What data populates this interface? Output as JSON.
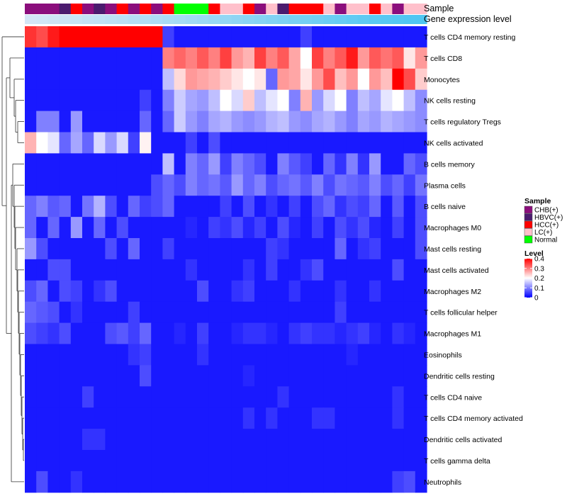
{
  "chart_data": {
    "type": "heatmap",
    "title": "",
    "row_labels": [
      "T cells CD4 memory resting",
      "T cells CD8",
      "Monocytes",
      "NK cells resting",
      "T cells regulatory  Tregs",
      "NK cells activated",
      "B cells memory",
      "Plasma cells",
      "B cells naive",
      "Macrophages M0",
      "Mast cells resting",
      "Mast cells activated",
      "Macrophages M2",
      "T cells follicular helper",
      "Macrophages M1",
      "Eosinophils",
      "Dendritic cells resting",
      "T cells CD4 naive",
      "T cells CD4 memory activated",
      "Dendritic cells activated",
      "T cells gamma delta",
      "Neutrophils"
    ],
    "annotation_labels": [
      "Sample",
      "Gene expression level"
    ],
    "samples": [
      "CHB(+)",
      "CHB(+)",
      "CHB(+)",
      "HBVC(+)",
      "HCC(+)",
      "CHB(+)",
      "HBVC(+)",
      "CHB(+)",
      "HCC(+)",
      "CHB(+)",
      "HCC(+)",
      "CHB(+)",
      "HCC(+)",
      "Normal",
      "Normal",
      "Normal",
      "HCC(+)",
      "LC(+)",
      "LC(+)",
      "HCC(+)",
      "CHB(+)",
      "LC(+)",
      "HBVC(+)",
      "HCC(+)",
      "HCC(+)",
      "HCC(+)",
      "LC(+)",
      "CHB(+)",
      "LC(+)",
      "LC(+)",
      "HCC(+)",
      "LC(+)",
      "CHB(+)",
      "LC(+)",
      "LC(+)"
    ],
    "expression": [
      0.1,
      0.12,
      0.14,
      0.16,
      0.18,
      0.21,
      0.23,
      0.26,
      0.28,
      0.31,
      0.33,
      0.36,
      0.39,
      0.42,
      0.45,
      0.48,
      0.51,
      0.54,
      0.57,
      0.6,
      0.63,
      0.66,
      0.69,
      0.72,
      0.75,
      0.78,
      0.81,
      0.84,
      0.87,
      0.9,
      0.93,
      0.95,
      0.97,
      0.99,
      1.0
    ],
    "values": [
      [
        0.36,
        0.34,
        0.38,
        0.42,
        0.42,
        0.42,
        0.42,
        0.42,
        0.42,
        0.42,
        0.42,
        0.42,
        0.05,
        0.02,
        0.02,
        0.02,
        0.02,
        0.02,
        0.02,
        0.02,
        0.02,
        0.02,
        0.02,
        0.02,
        0.05,
        0.02,
        0.02,
        0.02,
        0.02,
        0.02,
        0.02,
        0.02,
        0.02,
        0.02,
        0.02
      ],
      [
        0.02,
        0.02,
        0.02,
        0.02,
        0.02,
        0.02,
        0.02,
        0.02,
        0.02,
        0.02,
        0.02,
        0.02,
        0.3,
        0.32,
        0.3,
        0.33,
        0.3,
        0.35,
        0.28,
        0.26,
        0.35,
        0.3,
        0.33,
        0.27,
        0.2,
        0.35,
        0.3,
        0.33,
        0.38,
        0.28,
        0.33,
        0.31,
        0.33,
        0.22,
        0.28
      ],
      [
        0.02,
        0.02,
        0.02,
        0.02,
        0.02,
        0.02,
        0.02,
        0.02,
        0.02,
        0.02,
        0.02,
        0.02,
        0.15,
        0.23,
        0.28,
        0.27,
        0.26,
        0.24,
        0.22,
        0.2,
        0.22,
        0.08,
        0.28,
        0.27,
        0.22,
        0.28,
        0.34,
        0.25,
        0.28,
        0.2,
        0.28,
        0.25,
        0.4,
        0.34,
        0.24
      ],
      [
        0.02,
        0.02,
        0.02,
        0.02,
        0.02,
        0.02,
        0.02,
        0.02,
        0.02,
        0.02,
        0.05,
        0.02,
        0.1,
        0.16,
        0.13,
        0.12,
        0.15,
        0.2,
        0.17,
        0.24,
        0.15,
        0.18,
        0.2,
        0.1,
        0.26,
        0.12,
        0.17,
        0.2,
        0.1,
        0.15,
        0.13,
        0.18,
        0.2,
        0.15,
        0.11
      ],
      [
        0.02,
        0.1,
        0.1,
        0.02,
        0.12,
        0.02,
        0.02,
        0.02,
        0.02,
        0.02,
        0.08,
        0.02,
        0.08,
        0.16,
        0.12,
        0.1,
        0.13,
        0.14,
        0.12,
        0.11,
        0.12,
        0.14,
        0.15,
        0.12,
        0.11,
        0.13,
        0.14,
        0.12,
        0.1,
        0.13,
        0.12,
        0.14,
        0.13,
        0.12,
        0.11
      ],
      [
        0.26,
        0.2,
        0.18,
        0.08,
        0.13,
        0.08,
        0.17,
        0.12,
        0.17,
        0.05,
        0.21,
        0.02,
        0.02,
        0.02,
        0.05,
        0.02,
        0.06,
        0.02,
        0.02,
        0.02,
        0.02,
        0.02,
        0.02,
        0.02,
        0.02,
        0.02,
        0.02,
        0.02,
        0.02,
        0.02,
        0.02,
        0.02,
        0.02,
        0.02,
        0.02
      ],
      [
        0.02,
        0.02,
        0.02,
        0.02,
        0.02,
        0.02,
        0.02,
        0.02,
        0.02,
        0.02,
        0.02,
        0.02,
        0.15,
        0.02,
        0.1,
        0.08,
        0.12,
        0.05,
        0.1,
        0.08,
        0.06,
        0.02,
        0.1,
        0.07,
        0.05,
        0.02,
        0.08,
        0.04,
        0.1,
        0.04,
        0.12,
        0.02,
        0.02,
        0.08,
        0.06
      ],
      [
        0.02,
        0.02,
        0.02,
        0.02,
        0.02,
        0.02,
        0.02,
        0.02,
        0.02,
        0.02,
        0.02,
        0.06,
        0.08,
        0.06,
        0.1,
        0.08,
        0.09,
        0.07,
        0.12,
        0.08,
        0.1,
        0.06,
        0.08,
        0.09,
        0.07,
        0.1,
        0.06,
        0.09,
        0.08,
        0.07,
        0.1,
        0.06,
        0.08,
        0.05,
        0.09
      ],
      [
        0.08,
        0.1,
        0.07,
        0.08,
        0.02,
        0.09,
        0.14,
        0.06,
        0.02,
        0.08,
        0.05,
        0.06,
        0.08,
        0.02,
        0.02,
        0.02,
        0.02,
        0.05,
        0.02,
        0.06,
        0.02,
        0.04,
        0.02,
        0.05,
        0.02,
        0.06,
        0.08,
        0.04,
        0.06,
        0.05,
        0.08,
        0.02,
        0.07,
        0.02,
        0.06
      ],
      [
        0.08,
        0.02,
        0.08,
        0.02,
        0.12,
        0.02,
        0.08,
        0.02,
        0.06,
        0.02,
        0.02,
        0.02,
        0.02,
        0.02,
        0.03,
        0.02,
        0.05,
        0.04,
        0.06,
        0.03,
        0.05,
        0.02,
        0.06,
        0.03,
        0.02,
        0.05,
        0.02,
        0.06,
        0.04,
        0.06,
        0.03,
        0.02,
        0.05,
        0.02,
        0.06
      ],
      [
        0.12,
        0.06,
        0.02,
        0.02,
        0.02,
        0.02,
        0.02,
        0.06,
        0.02,
        0.08,
        0.02,
        0.02,
        0.05,
        0.02,
        0.02,
        0.02,
        0.02,
        0.02,
        0.02,
        0.02,
        0.02,
        0.05,
        0.04,
        0.02,
        0.02,
        0.02,
        0.02,
        0.08,
        0.02,
        0.04,
        0.05,
        0.02,
        0.02,
        0.02,
        0.06
      ],
      [
        0.02,
        0.02,
        0.06,
        0.06,
        0.02,
        0.02,
        0.02,
        0.02,
        0.02,
        0.02,
        0.02,
        0.02,
        0.02,
        0.02,
        0.04,
        0.02,
        0.02,
        0.02,
        0.02,
        0.04,
        0.02,
        0.05,
        0.02,
        0.02,
        0.04,
        0.06,
        0.02,
        0.02,
        0.02,
        0.02,
        0.02,
        0.02,
        0.06,
        0.02,
        0.02
      ],
      [
        0.06,
        0.08,
        0.02,
        0.06,
        0.05,
        0.02,
        0.04,
        0.06,
        0.02,
        0.02,
        0.02,
        0.02,
        0.02,
        0.02,
        0.02,
        0.06,
        0.02,
        0.02,
        0.04,
        0.05,
        0.02,
        0.02,
        0.02,
        0.04,
        0.02,
        0.02,
        0.02,
        0.04,
        0.02,
        0.02,
        0.04,
        0.02,
        0.02,
        0.02,
        0.02
      ],
      [
        0.08,
        0.07,
        0.06,
        0.02,
        0.04,
        0.02,
        0.02,
        0.02,
        0.02,
        0.05,
        0.02,
        0.02,
        0.02,
        0.02,
        0.02,
        0.02,
        0.02,
        0.02,
        0.02,
        0.02,
        0.02,
        0.02,
        0.02,
        0.02,
        0.02,
        0.02,
        0.02,
        0.05,
        0.02,
        0.02,
        0.02,
        0.02,
        0.02,
        0.02,
        0.02
      ],
      [
        0.06,
        0.05,
        0.04,
        0.06,
        0.02,
        0.02,
        0.02,
        0.06,
        0.07,
        0.05,
        0.08,
        0.02,
        0.02,
        0.03,
        0.02,
        0.05,
        0.02,
        0.02,
        0.03,
        0.04,
        0.04,
        0.03,
        0.02,
        0.04,
        0.05,
        0.04,
        0.04,
        0.03,
        0.04,
        0.05,
        0.03,
        0.02,
        0.04,
        0.03,
        0.02
      ],
      [
        0.02,
        0.02,
        0.02,
        0.02,
        0.02,
        0.02,
        0.02,
        0.02,
        0.02,
        0.04,
        0.05,
        0.02,
        0.02,
        0.02,
        0.02,
        0.04,
        0.02,
        0.02,
        0.02,
        0.02,
        0.02,
        0.02,
        0.02,
        0.02,
        0.02,
        0.02,
        0.02,
        0.02,
        0.03,
        0.02,
        0.02,
        0.02,
        0.02,
        0.02,
        0.02
      ],
      [
        0.02,
        0.02,
        0.02,
        0.02,
        0.02,
        0.02,
        0.02,
        0.02,
        0.02,
        0.02,
        0.06,
        0.02,
        0.02,
        0.02,
        0.02,
        0.02,
        0.02,
        0.02,
        0.02,
        0.03,
        0.02,
        0.02,
        0.02,
        0.02,
        0.02,
        0.02,
        0.02,
        0.02,
        0.02,
        0.02,
        0.02,
        0.02,
        0.02,
        0.02,
        0.02
      ],
      [
        0.02,
        0.02,
        0.02,
        0.02,
        0.02,
        0.05,
        0.02,
        0.02,
        0.02,
        0.02,
        0.02,
        0.02,
        0.02,
        0.02,
        0.02,
        0.02,
        0.02,
        0.02,
        0.02,
        0.02,
        0.02,
        0.02,
        0.04,
        0.02,
        0.02,
        0.02,
        0.02,
        0.02,
        0.02,
        0.02,
        0.02,
        0.02,
        0.04,
        0.02,
        0.02
      ],
      [
        0.02,
        0.02,
        0.02,
        0.02,
        0.02,
        0.02,
        0.02,
        0.02,
        0.02,
        0.02,
        0.02,
        0.02,
        0.02,
        0.02,
        0.02,
        0.02,
        0.02,
        0.02,
        0.02,
        0.04,
        0.02,
        0.04,
        0.02,
        0.02,
        0.02,
        0.04,
        0.04,
        0.02,
        0.02,
        0.02,
        0.02,
        0.02,
        0.04,
        0.02,
        0.02
      ],
      [
        0.02,
        0.02,
        0.02,
        0.02,
        0.02,
        0.04,
        0.04,
        0.02,
        0.02,
        0.02,
        0.02,
        0.02,
        0.02,
        0.02,
        0.02,
        0.02,
        0.02,
        0.02,
        0.02,
        0.02,
        0.02,
        0.02,
        0.02,
        0.02,
        0.02,
        0.02,
        0.02,
        0.02,
        0.02,
        0.02,
        0.02,
        0.02,
        0.02,
        0.02,
        0.02
      ],
      [
        0.02,
        0.02,
        0.02,
        0.02,
        0.02,
        0.02,
        0.02,
        0.02,
        0.02,
        0.02,
        0.02,
        0.02,
        0.02,
        0.02,
        0.02,
        0.02,
        0.02,
        0.02,
        0.02,
        0.02,
        0.02,
        0.02,
        0.02,
        0.02,
        0.02,
        0.02,
        0.02,
        0.02,
        0.02,
        0.02,
        0.02,
        0.02,
        0.02,
        0.02,
        0.02
      ],
      [
        0.02,
        0.06,
        0.02,
        0.02,
        0.04,
        0.02,
        0.02,
        0.02,
        0.02,
        0.02,
        0.02,
        0.02,
        0.02,
        0.02,
        0.02,
        0.02,
        0.02,
        0.02,
        0.02,
        0.02,
        0.02,
        0.02,
        0.02,
        0.02,
        0.02,
        0.02,
        0.02,
        0.02,
        0.02,
        0.02,
        0.02,
        0.02,
        0.05,
        0.06,
        0.02
      ]
    ],
    "scale": {
      "min": 0,
      "max": 0.4,
      "low": "#0000ff",
      "mid": "#ffffff",
      "high": "#ff0000",
      "mid_value": 0.2
    },
    "legend_sample": {
      "title": "Sample",
      "entries": [
        {
          "label": "CHB(+)",
          "color": "#8b0e7c"
        },
        {
          "label": "HBVC(+)",
          "color": "#4b1b6e"
        },
        {
          "label": "HCC(+)",
          "color": "#ff0000"
        },
        {
          "label": "LC(+)",
          "color": "#ffc0cb"
        },
        {
          "label": "Normal",
          "color": "#00ff00"
        }
      ]
    },
    "legend_level": {
      "title": "Level",
      "ticks": [
        "0.4",
        "0.3",
        "0.2",
        "0.1",
        "0"
      ],
      "tick_values": [
        0.4,
        0.3,
        0.2,
        0.1,
        0
      ]
    },
    "expression_colors": {
      "low": "#e3eaf6",
      "high": "#4fc6f2"
    },
    "legend_placement": "right"
  }
}
